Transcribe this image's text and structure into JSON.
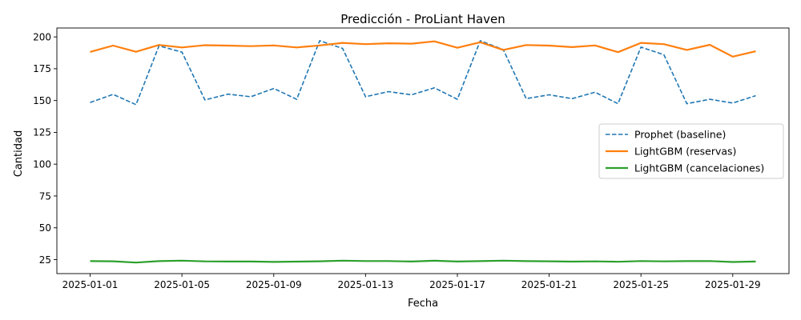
{
  "chart_data": {
    "type": "line",
    "title": "Predicción - ProLiant Haven",
    "xlabel": "Fecha",
    "ylabel": "Cantidad",
    "x": [
      "2025-01-01",
      "2025-01-02",
      "2025-01-03",
      "2025-01-04",
      "2025-01-05",
      "2025-01-06",
      "2025-01-07",
      "2025-01-08",
      "2025-01-09",
      "2025-01-10",
      "2025-01-11",
      "2025-01-12",
      "2025-01-13",
      "2025-01-14",
      "2025-01-15",
      "2025-01-16",
      "2025-01-17",
      "2025-01-18",
      "2025-01-19",
      "2025-01-20",
      "2025-01-21",
      "2025-01-22",
      "2025-01-23",
      "2025-01-24",
      "2025-01-25",
      "2025-01-26",
      "2025-01-27",
      "2025-01-28",
      "2025-01-29",
      "2025-01-30"
    ],
    "xticks": [
      "2025-01-01",
      "2025-01-05",
      "2025-01-09",
      "2025-01-13",
      "2025-01-17",
      "2025-01-21",
      "2025-01-25",
      "2025-01-29"
    ],
    "yticks": [
      25,
      50,
      75,
      100,
      125,
      150,
      175,
      200
    ],
    "ylim": [
      14,
      207
    ],
    "grid": false,
    "legend_position": "center-right",
    "series": [
      {
        "name": "Prophet (baseline)",
        "color": "#1f77b4",
        "style": "dashed",
        "values": [
          148.5,
          154.8,
          146.8,
          193.0,
          188.0,
          150.5,
          155.0,
          153.0,
          159.5,
          151.0,
          197.0,
          191.0,
          153.0,
          157.0,
          154.5,
          160.0,
          151.0,
          197.0,
          190.0,
          151.5,
          154.5,
          151.5,
          156.5,
          147.5,
          192.0,
          186.0,
          147.5,
          151.0,
          148.0,
          153.8
        ]
      },
      {
        "name": "LightGBM (reservas)",
        "color": "#ff7f0e",
        "style": "solid",
        "values": [
          188.2,
          193.2,
          188.3,
          193.7,
          191.7,
          193.5,
          193.2,
          192.7,
          193.3,
          191.7,
          193.3,
          195.3,
          194.3,
          195.0,
          194.7,
          196.5,
          191.5,
          195.8,
          189.8,
          193.6,
          193.2,
          192.0,
          193.3,
          188.0,
          195.3,
          194.3,
          189.8,
          193.8,
          184.5,
          188.7
        ]
      },
      {
        "name": "LightGBM (cancelaciones)",
        "color": "#2ca02c",
        "style": "solid",
        "values": [
          23.8,
          23.7,
          22.7,
          23.8,
          24.2,
          23.6,
          23.5,
          23.5,
          23.2,
          23.4,
          23.7,
          24.2,
          23.9,
          23.9,
          23.5,
          24.1,
          23.5,
          23.8,
          24.2,
          23.8,
          23.7,
          23.4,
          23.6,
          23.3,
          23.9,
          23.6,
          23.8,
          23.9,
          23.1,
          23.5
        ]
      }
    ]
  }
}
